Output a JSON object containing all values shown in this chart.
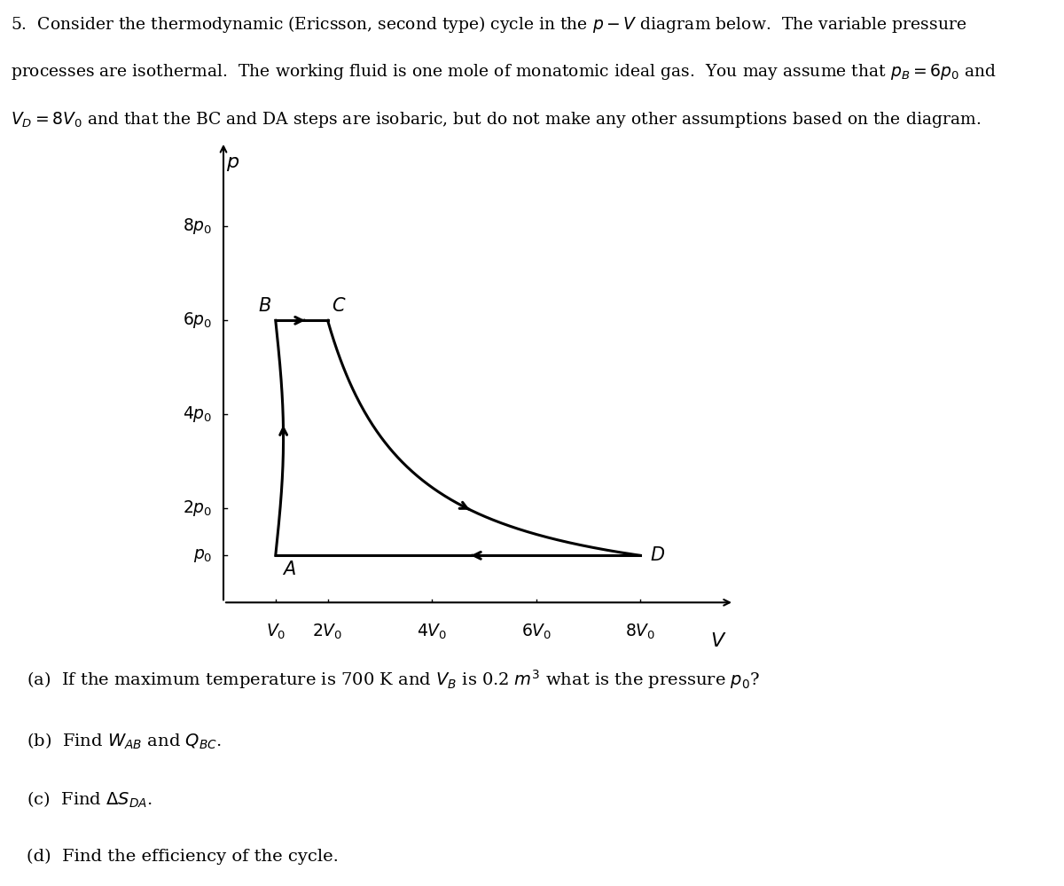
{
  "yticks_labels": [
    "$p_0$",
    "$2p_0$",
    "$4p_0$",
    "$6p_0$",
    "$8p_0$"
  ],
  "yticks_vals": [
    1,
    2,
    4,
    6,
    8
  ],
  "xticks_labels": [
    "$V_0$",
    "$2V_0$",
    "$4V_0$",
    "$6V_0$",
    "$8V_0$"
  ],
  "xticks_vals": [
    1,
    2,
    4,
    6,
    8
  ],
  "p_label": "$p$",
  "V_label": "$V$",
  "line1": "5.  Consider the thermodynamic (Ericsson, second type) cycle in the $p - V$ diagram below.  The variable pressure",
  "line2": "processes are isothermal.  The working fluid is one mole of monatomic ideal gas.  You may assume that $p_B = 6p_0$ and",
  "line3": "$V_D = 8V_0$ and that the BC and DA steps are isobaric, but do not make any other assumptions based on the diagram.",
  "q1": "(a)  If the maximum temperature is 700 K and $V_B$ is 0.2 $m^3$ what is the pressure $p_0$?",
  "q2": "(b)  Find $W_{AB}$ and $Q_{BC}$.",
  "q3": "(c)  Find $\\Delta S_{DA}$.",
  "q4": "(d)  Find the efficiency of the cycle.",
  "background_color": "#ffffff",
  "font_size_text": 13.5,
  "font_size_ticks": 13.5,
  "font_size_axis_label": 16,
  "font_size_point": 15,
  "font_size_q": 14,
  "xlim": [
    0,
    9.8
  ],
  "ylim": [
    0,
    9.8
  ],
  "V_A": 1.0,
  "p_A": 1.0,
  "V_B": 1.0,
  "p_B": 6.0,
  "V_C": 2.0,
  "p_C": 6.0,
  "V_D": 8.0,
  "p_D": 1.0,
  "lw": 2.2
}
